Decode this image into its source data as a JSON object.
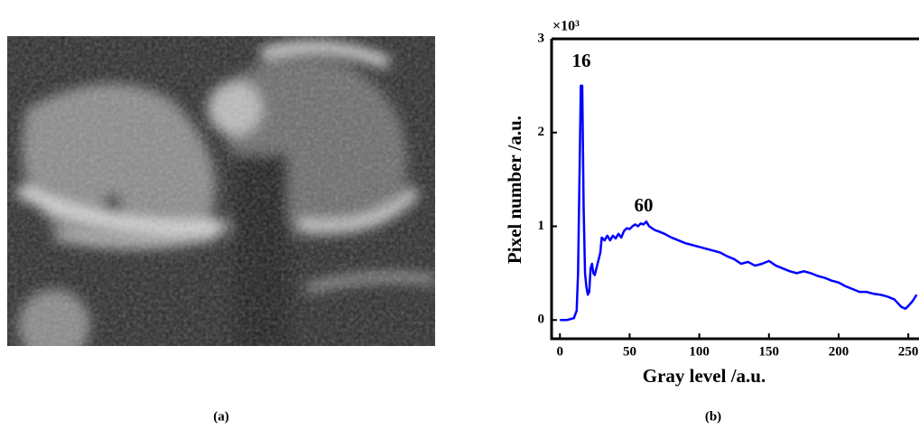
{
  "panel_labels": [
    "(a)",
    "(b)"
  ],
  "chart_data": {
    "type": "line",
    "x_label": "Gray level  /a.u.",
    "y_label": "Pixel number   /a.u.",
    "y_multiplier": "×10³",
    "annotations": [
      "16",
      "60"
    ],
    "color": "#0000ff",
    "xlim": [
      -6,
      258
    ],
    "xticks": [
      0,
      50,
      100,
      150,
      200,
      250
    ],
    "ylim": [
      -0.2,
      3
    ],
    "yticks": [
      0,
      1,
      2,
      3
    ],
    "x": [
      0,
      5,
      10,
      12,
      13,
      14,
      15,
      16,
      17,
      18,
      19,
      20,
      21,
      22,
      23,
      24,
      25,
      27,
      29,
      30,
      32,
      34,
      36,
      38,
      40,
      42,
      44,
      46,
      48,
      50,
      52,
      54,
      56,
      58,
      60,
      62,
      64,
      66,
      68,
      70,
      75,
      80,
      85,
      90,
      95,
      100,
      105,
      110,
      115,
      120,
      125,
      130,
      135,
      140,
      145,
      150,
      155,
      160,
      165,
      170,
      175,
      180,
      185,
      190,
      195,
      200,
      205,
      210,
      215,
      220,
      225,
      230,
      235,
      240,
      245,
      248,
      250,
      253,
      256
    ],
    "values": [
      0,
      0,
      0.02,
      0.1,
      0.5,
      1.5,
      2.5,
      2.5,
      1.2,
      0.5,
      0.35,
      0.27,
      0.3,
      0.55,
      0.6,
      0.5,
      0.48,
      0.6,
      0.72,
      0.88,
      0.85,
      0.9,
      0.85,
      0.9,
      0.87,
      0.92,
      0.88,
      0.95,
      0.98,
      0.97,
      1.0,
      1.02,
      1.0,
      1.03,
      1.02,
      1.05,
      1.0,
      0.98,
      0.96,
      0.95,
      0.92,
      0.88,
      0.85,
      0.82,
      0.8,
      0.78,
      0.76,
      0.74,
      0.72,
      0.68,
      0.65,
      0.6,
      0.62,
      0.58,
      0.6,
      0.63,
      0.58,
      0.55,
      0.52,
      0.5,
      0.52,
      0.5,
      0.47,
      0.45,
      0.42,
      0.4,
      0.36,
      0.33,
      0.3,
      0.3,
      0.28,
      0.27,
      0.25,
      0.22,
      0.14,
      0.12,
      0.15,
      0.2,
      0.27
    ]
  }
}
